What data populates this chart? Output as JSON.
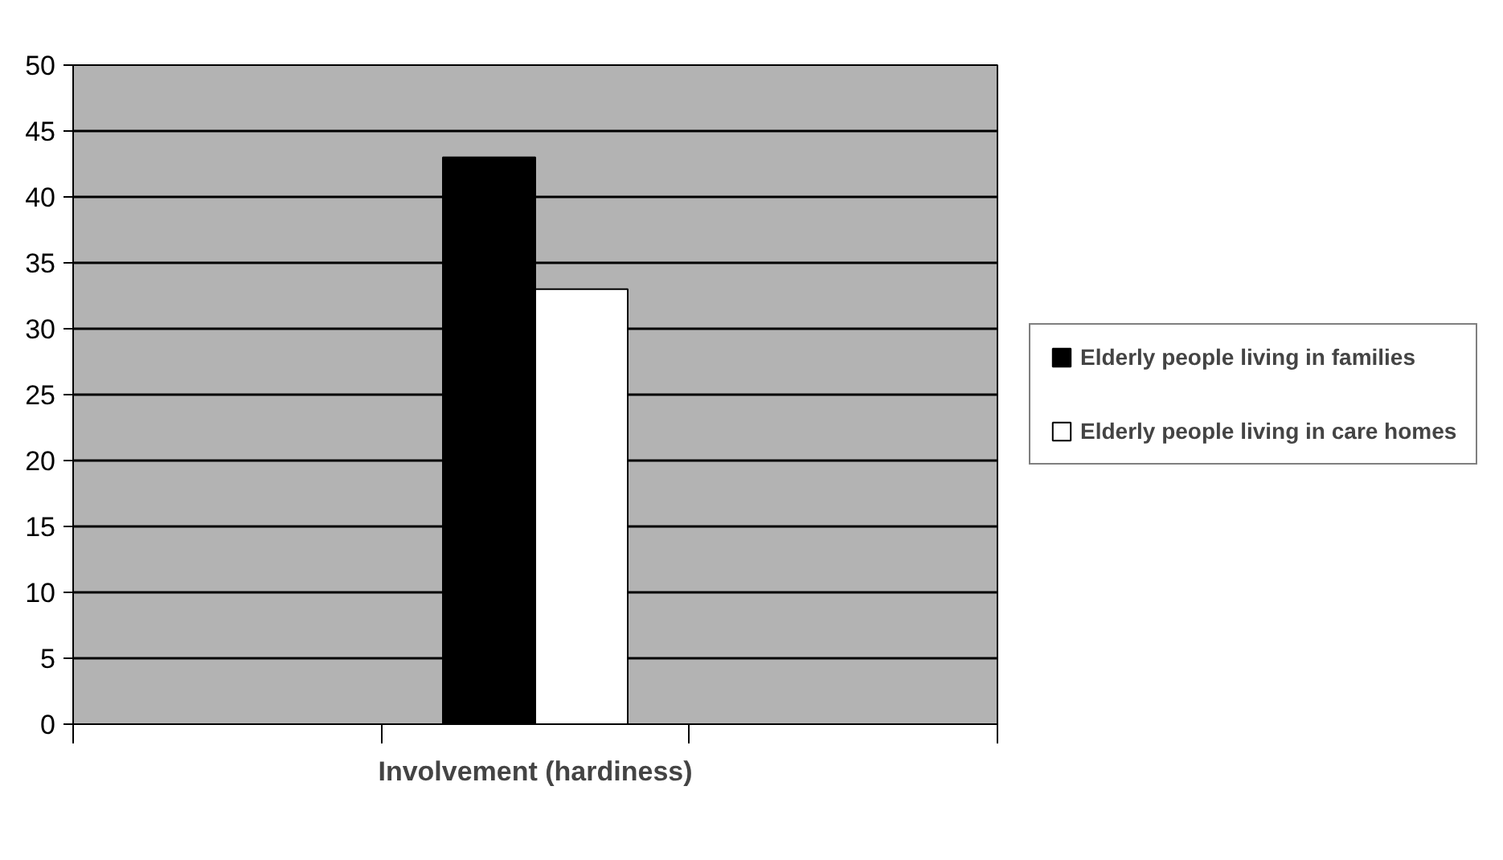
{
  "chart_data": {
    "type": "bar",
    "categories": [
      "Involvement (hardiness)"
    ],
    "series": [
      {
        "name": "Elderly people living in families",
        "color": "#000000",
        "values": [
          43
        ]
      },
      {
        "name": "Elderly people living in care homes",
        "color": "#ffffff",
        "values": [
          33
        ]
      }
    ],
    "ylim": [
      0,
      50
    ],
    "yticks": [
      0,
      5,
      10,
      15,
      20,
      25,
      30,
      35,
      40,
      45,
      50
    ],
    "grid": "y",
    "legend": "right"
  }
}
